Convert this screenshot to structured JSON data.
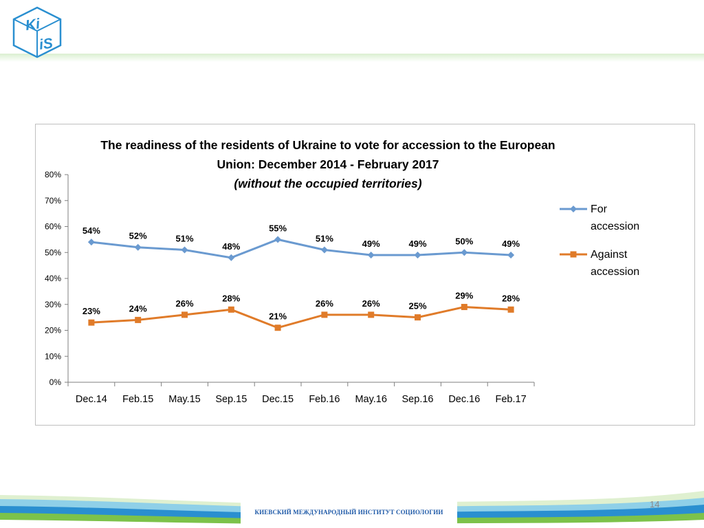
{
  "logo": {
    "line1": "Ki",
    "line2": "iS"
  },
  "colors": {
    "for": "#6a9ad0",
    "against": "#e07b29",
    "brand_blue": "#2a8fd0",
    "brand_green": "#7cc24a"
  },
  "chart_data": {
    "type": "line",
    "title": "The readiness of the residents of Ukraine to vote for accession to the European",
    "title_line2": "Union: December 2014  - February 2017",
    "subtitle": "(without the occupied territories)",
    "categories": [
      "Dec.14",
      "Feb.15",
      "May.15",
      "Sep.15",
      "Dec.15",
      "Feb.16",
      "May.16",
      "Sep.16",
      "Dec.16",
      "Feb.17"
    ],
    "series": [
      {
        "name": "For accession",
        "legend_lines": [
          "For",
          "accession"
        ],
        "color": "#6a9ad0",
        "marker": "diamond",
        "values": [
          54,
          52,
          51,
          48,
          55,
          51,
          49,
          49,
          50,
          49
        ],
        "labels": [
          "54%",
          "52%",
          "51%",
          "48%",
          "55%",
          "51%",
          "49%",
          "49%",
          "50%",
          "49%"
        ]
      },
      {
        "name": "Against accession",
        "legend_lines": [
          "Against",
          "accession"
        ],
        "color": "#e07b29",
        "marker": "square",
        "values": [
          23,
          24,
          26,
          28,
          21,
          26,
          26,
          25,
          29,
          28
        ],
        "labels": [
          "23%",
          "24%",
          "26%",
          "28%",
          "21%",
          "26%",
          "26%",
          "25%",
          "29%",
          "28%"
        ]
      }
    ],
    "yticks": [
      "0%",
      "10%",
      "20%",
      "30%",
      "40%",
      "50%",
      "60%",
      "70%",
      "80%"
    ],
    "ylim": [
      0,
      80
    ],
    "ylabel": "",
    "xlabel": "",
    "grid": false,
    "legend_position": "right"
  },
  "footer": {
    "text": "КИЕВСКИЙ МЕЖДУНАРОДНЫЙ ИНСТИТУТ СОЦИОЛОГИИ",
    "page_number": "14"
  }
}
